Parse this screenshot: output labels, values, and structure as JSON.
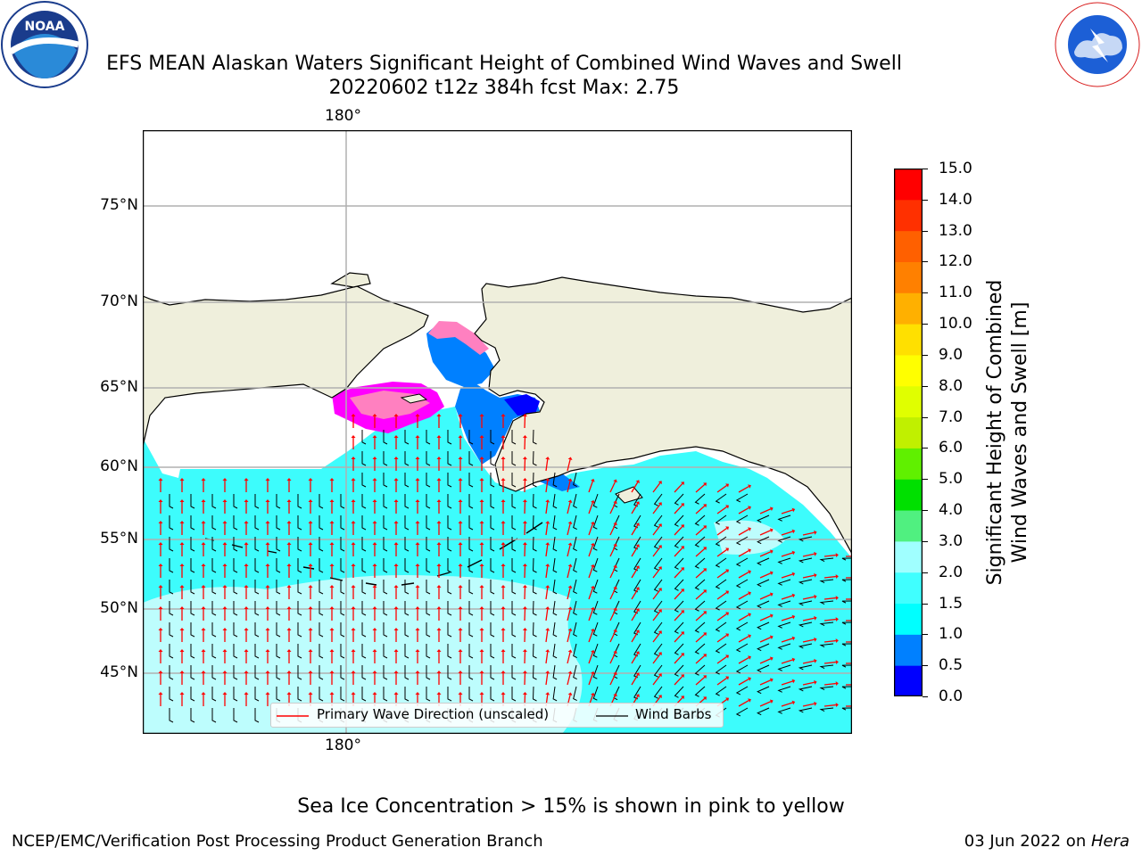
{
  "header": {
    "title_line1": "EFS MEAN Alaskan Waters Significant Height of Combined Wind Waves and Swell",
    "title_line2": "20220602 t12z 384h fcst   Max: 2.75"
  },
  "logos": {
    "left": {
      "name": "NOAA",
      "ring_text": "NATIONAL OCEANIC AND ATMOSPHERIC ADMINISTRATION · U.S. DEPARTMENT OF COMMERCE"
    },
    "right": {
      "ring_text": "NATIONAL WEATHER SERVICE"
    }
  },
  "map": {
    "lat_labels": [
      "75°N",
      "70°N",
      "65°N",
      "60°N",
      "55°N",
      "50°N",
      "45°N"
    ],
    "lon_label_top": "180°",
    "lon_label_bottom": "180°",
    "legend": {
      "wave_direction": "Primary Wave Direction (unscaled)",
      "wind_barbs": "Wind Barbs"
    },
    "colors": {
      "land": "#efefdc",
      "ocean_light": "#bdfdfd",
      "ocean_main": "#3dfcfc",
      "ocean_calm": "#0080ff",
      "ice_pink": "#ff80c0",
      "ice_magenta": "#ff00ff",
      "wave_arrow": "#ff0000",
      "wind_barb": "#000000",
      "grid": "#b0b0b0"
    }
  },
  "colorbar": {
    "label_line1": "Significant Height of Combined",
    "label_line2": "Wind Waves and Swell [m]",
    "ticks": [
      "0.0",
      "0.5",
      "1.0",
      "1.5",
      "2.0",
      "3.0",
      "4.0",
      "5.0",
      "6.0",
      "7.0",
      "8.0",
      "9.0",
      "10.0",
      "11.0",
      "12.0",
      "13.0",
      "14.0",
      "15.0"
    ],
    "colors": [
      "#0000ff",
      "#0080ff",
      "#00ffff",
      "#40ffff",
      "#a0ffff",
      "#50f080",
      "#00e000",
      "#60f000",
      "#c0f000",
      "#e0ff00",
      "#ffff00",
      "#ffe000",
      "#ffb000",
      "#ff8000",
      "#ff6000",
      "#ff3000",
      "#ff0000"
    ]
  },
  "footer": {
    "note": "Sea Ice Concentration > 15% is shown in pink to yellow",
    "credit": "NCEP/EMC/Verification Post Processing Product Generation Branch",
    "date": "03 Jun 2022 on ",
    "host": "Hera"
  }
}
